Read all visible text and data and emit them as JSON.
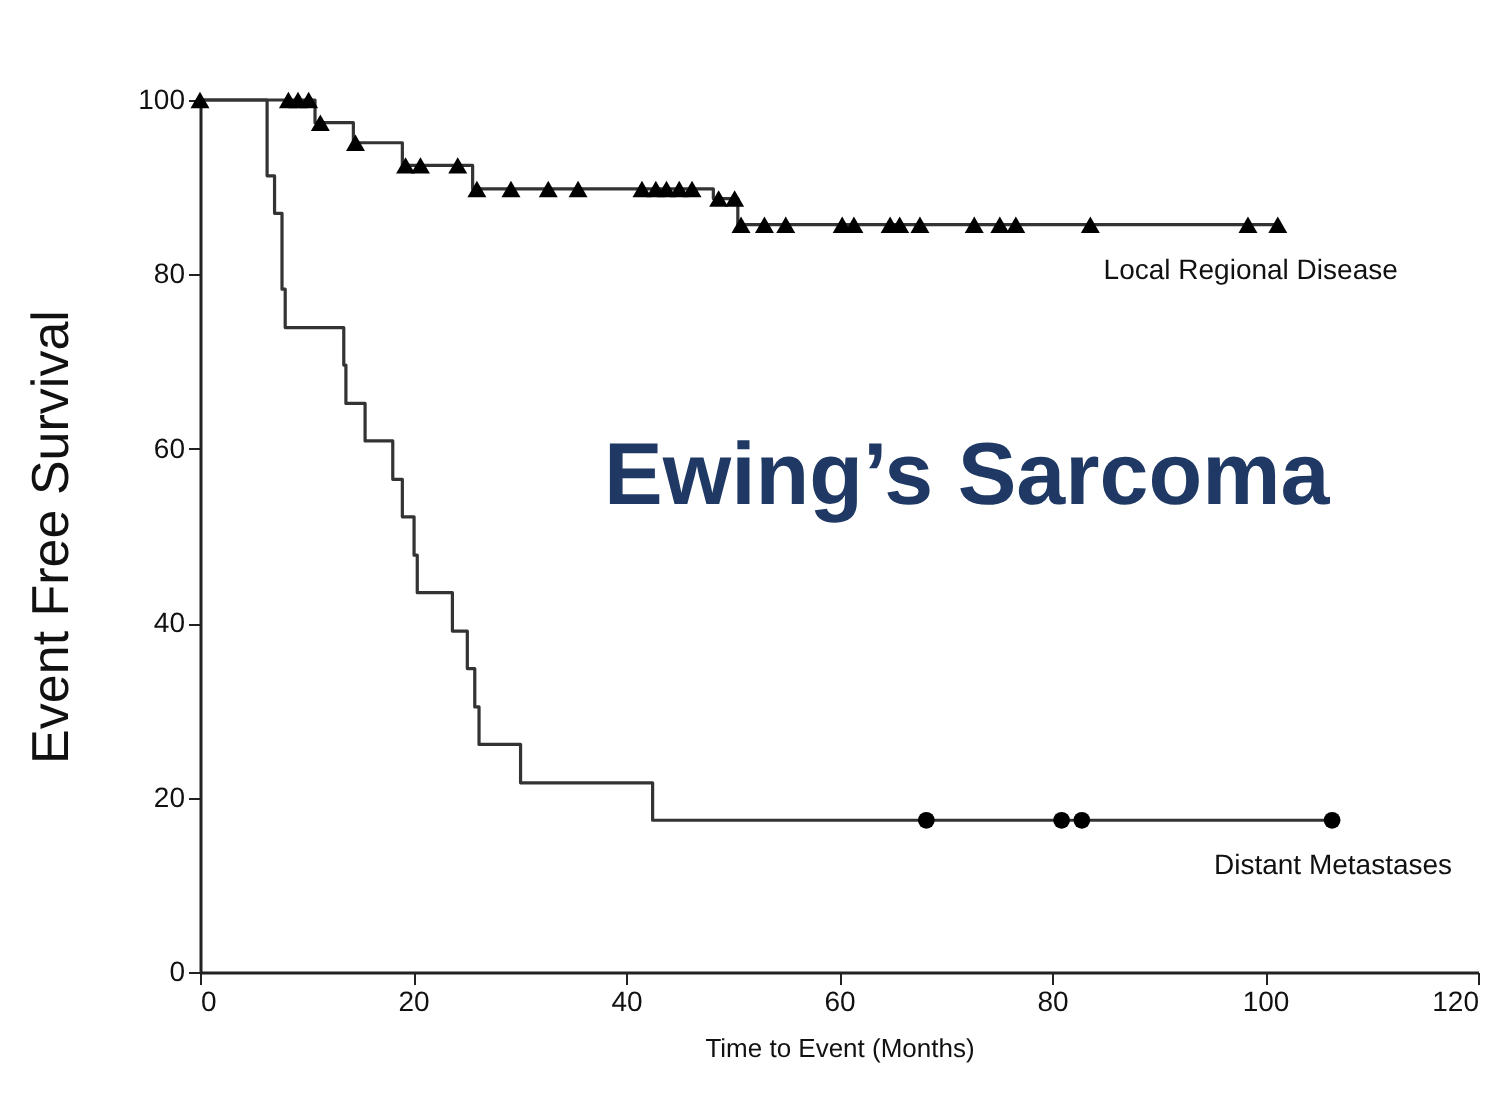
{
  "chart_data": {
    "type": "step",
    "title": "Ewing’s Sarcoma",
    "xlabel": "Time to Event (Months)",
    "ylabel": "Event Free Survival",
    "xlim": [
      0,
      120
    ],
    "xticks": [
      0,
      20,
      40,
      60,
      80,
      100,
      120
    ],
    "ylim": [
      0,
      100
    ],
    "yticks": [
      0,
      20,
      40,
      60,
      80,
      100
    ],
    "series": [
      {
        "name": "Local Regional Disease",
        "color": "#333333",
        "marker": "none",
        "x": [
          0,
          10.8,
          14.4,
          19.0,
          25.6,
          48.2,
          50.5,
          101.2
        ],
        "values": [
          100,
          97.4,
          95.1,
          92.5,
          89.8,
          88.7,
          85.7,
          85.7
        ]
      },
      {
        "name": "Distant Metastases",
        "color": "#333333",
        "marker": "none",
        "x": [
          0,
          6.3,
          7.0,
          7.7,
          8.0,
          13.5,
          13.7,
          15.5,
          18.1,
          19.0,
          20.1,
          20.4,
          23.7,
          25.1,
          25.8,
          26.2,
          30.1,
          42.5,
          106.3
        ],
        "values": [
          100,
          91.3,
          87.0,
          78.3,
          73.9,
          69.6,
          65.2,
          60.9,
          56.5,
          52.2,
          47.8,
          43.5,
          39.1,
          34.8,
          30.4,
          26.1,
          21.7,
          17.4,
          17.4
        ]
      },
      {
        "type": "scatter",
        "color": "#000000",
        "marker": "triangle",
        "x": [
          0,
          8.3,
          9.2,
          10.2,
          11.3,
          14.6,
          19.3,
          20.7,
          24.2,
          26.0,
          29.2,
          32.7,
          35.5,
          41.5,
          42.8,
          43.8,
          45.0,
          46.2,
          48.7,
          50.2,
          50.8,
          53.0,
          55.0,
          60.3,
          61.4,
          64.8,
          65.7,
          67.6,
          72.7,
          75.1,
          76.6,
          83.6,
          98.4,
          101.2
        ],
        "values": [
          100,
          100,
          100,
          100,
          97.4,
          95.1,
          92.5,
          92.5,
          92.5,
          89.8,
          89.8,
          89.8,
          89.8,
          89.8,
          89.8,
          89.8,
          89.8,
          89.8,
          88.7,
          88.7,
          85.7,
          85.7,
          85.7,
          85.7,
          85.7,
          85.7,
          85.7,
          85.7,
          85.7,
          85.7,
          85.7,
          85.7,
          85.7,
          85.7
        ]
      },
      {
        "type": "scatter",
        "color": "#000000",
        "marker": "circle",
        "x": [
          68.2,
          80.9,
          82.8,
          106.3
        ],
        "values": [
          17.4,
          17.4,
          17.4,
          17.4
        ]
      }
    ]
  }
}
